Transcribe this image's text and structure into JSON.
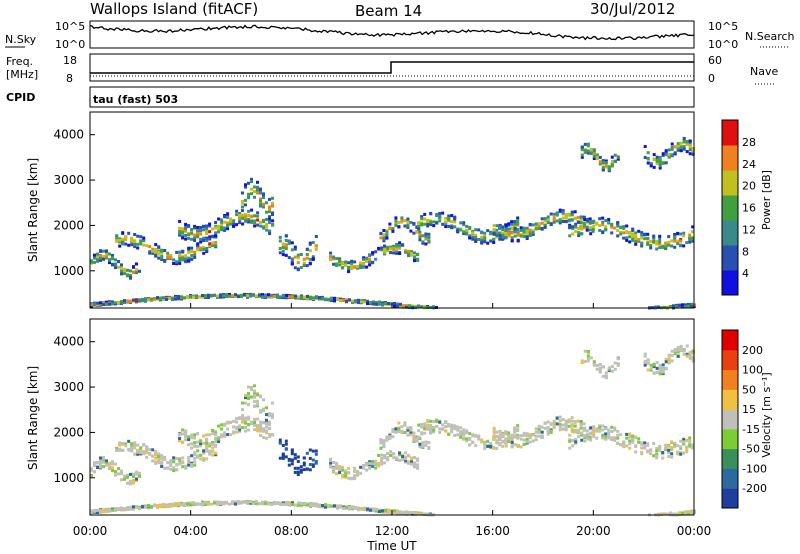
{
  "header": {
    "station": "Wallops Island (fitACF)",
    "beam": "Beam 14",
    "date": "30/Jul/2012"
  },
  "noise_panel": {
    "label_left": "N.Sky",
    "label_right": "N.Search",
    "ticks_left": [
      "10^5",
      "10^0"
    ],
    "ticks_right": [
      "10^5",
      "10^0"
    ]
  },
  "freq_panel": {
    "label_left_1": "Freq.",
    "label_left_2": "[MHz]",
    "label_right": "Nave",
    "ticks_left": [
      "18",
      "8"
    ],
    "ticks_right": [
      "60",
      "0"
    ]
  },
  "cpid": {
    "label": "CPID",
    "value": "tau (fast) 503"
  },
  "chart_data": [
    {
      "type": "heatmap",
      "name": "power",
      "ylabel": "Slant Range [km]",
      "ylim": [
        180,
        4500
      ],
      "yticks": [
        "1000",
        "2000",
        "3000",
        "4000"
      ],
      "colorbar": {
        "label": "Power [dB]",
        "ticks": [
          "4",
          "8",
          "12",
          "16",
          "20",
          "24",
          "28"
        ],
        "colors": [
          "#1010e0",
          "#2850b0",
          "#3a8a8a",
          "#40a040",
          "#c0c020",
          "#f08020",
          "#e01010"
        ]
      }
    },
    {
      "type": "heatmap",
      "name": "velocity",
      "ylabel": "Slant Range [km]",
      "ylim": [
        180,
        4500
      ],
      "yticks": [
        "1000",
        "2000",
        "3000",
        "4000"
      ],
      "colorbar": {
        "label": "Velocity [m s⁻¹]",
        "ticks": [
          "200",
          "100",
          "50",
          "15",
          "-15",
          "-50",
          "-100",
          "-200"
        ],
        "colors": [
          "#1f3f9f",
          "#2a6aa0",
          "#3a8f5a",
          "#7ccc33",
          "#c0c0b8",
          "#f0c040",
          "#f08020",
          "#e84010",
          "#e00000"
        ]
      }
    }
  ],
  "time_axis": {
    "label": "Time UT",
    "ticks": [
      "00:00",
      "04:00",
      "08:00",
      "12:00",
      "16:00",
      "20:00",
      "00:00"
    ]
  }
}
